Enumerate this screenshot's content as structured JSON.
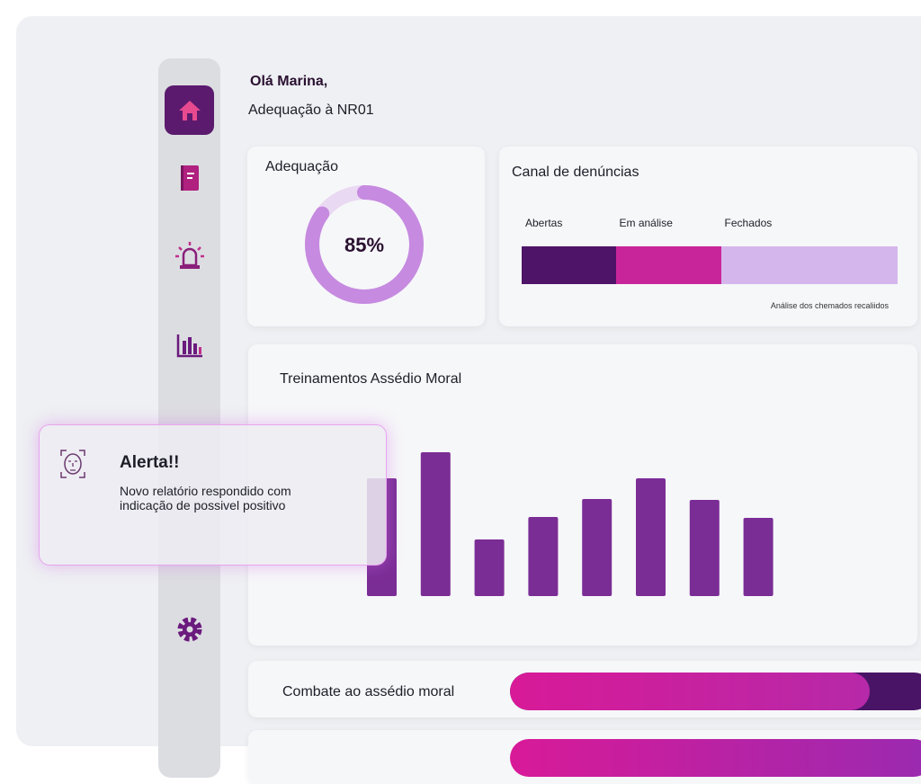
{
  "header": {
    "greeting": "Olá Marina,",
    "subtitle": "Adequação à NR01"
  },
  "adequacy": {
    "title": "Adequação",
    "value": 85,
    "label": "85%"
  },
  "complaints": {
    "title": "Canal de denúncias",
    "segments": [
      {
        "name": "Abertas",
        "value": 25,
        "color": "#4e1468"
      },
      {
        "name": "Em análise",
        "value": 28,
        "color": "#c9259a"
      },
      {
        "name": "Fechados",
        "value": 47,
        "color": "#d5b6ec"
      }
    ],
    "note": "Análise dos chemados recaliidos"
  },
  "training": {
    "title": "Treinamentos Assédio Moral",
    "color": "#7b2d96",
    "values": [
      131,
      160,
      63,
      88,
      108,
      131,
      107,
      87
    ]
  },
  "alert": {
    "title": "Alerta!!",
    "message": "Novo relatório respondido com indicação de possivel positivo"
  },
  "progress": {
    "title": "Combate ao assédio moral",
    "value": 85
  }
}
